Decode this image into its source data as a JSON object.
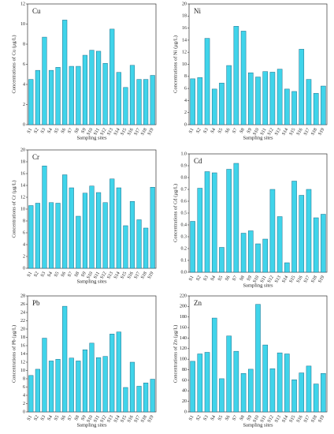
{
  "chart_data": [
    {
      "type": "bar",
      "title": "Cu",
      "xlabel": "Sampling sites",
      "ylabel": "Concentrations of Cu (μg/L)",
      "color": "#40d4ea",
      "categories": [
        "S1",
        "S2",
        "S3",
        "S4",
        "S5",
        "S6",
        "S7",
        "S8",
        "S9",
        "S10",
        "S11",
        "S12",
        "S13",
        "S14",
        "S15",
        "S16",
        "S17",
        "S18",
        "S19"
      ],
      "values": [
        4.5,
        5.4,
        8.7,
        5.4,
        5.7,
        10.4,
        5.8,
        5.8,
        6.9,
        7.4,
        7.3,
        6.1,
        9.5,
        5.2,
        3.7,
        5.9,
        4.5,
        4.5,
        4.9
      ],
      "ylim": [
        0,
        12
      ],
      "yticks": [
        0,
        2,
        4,
        6,
        8,
        10,
        12
      ]
    },
    {
      "type": "bar",
      "title": "Ni",
      "xlabel": "Sampling sites",
      "ylabel": "Concentrations of Ni (μg/L)",
      "color": "#40d4ea",
      "categories": [
        "S1",
        "S2",
        "S3",
        "S4",
        "S5",
        "S6",
        "S7",
        "S8",
        "S9",
        "S10",
        "S11",
        "S12",
        "S13",
        "S14",
        "S15",
        "S16",
        "S17",
        "S18",
        "S19"
      ],
      "values": [
        7.6,
        7.8,
        14.3,
        5.9,
        6.9,
        9.8,
        16.3,
        15.5,
        8.6,
        7.9,
        8.8,
        8.7,
        9.2,
        5.9,
        5.5,
        12.5,
        7.5,
        5.2,
        6.4
      ],
      "ylim": [
        0,
        20
      ],
      "yticks": [
        0,
        2,
        4,
        6,
        8,
        10,
        12,
        14,
        16,
        18,
        20
      ]
    },
    {
      "type": "bar",
      "title": "Cr",
      "xlabel": "Sampling sites",
      "ylabel": "Concentrations of Cr (μg/L)",
      "color": "#40d4ea",
      "categories": [
        "S1",
        "S2",
        "S3",
        "S4",
        "S5",
        "S6",
        "S7",
        "S8",
        "S9",
        "S10",
        "S11",
        "S12",
        "S13",
        "S14",
        "S15",
        "S16",
        "S17",
        "S18",
        "S19"
      ],
      "values": [
        10.6,
        11.0,
        17.3,
        11.1,
        11.0,
        15.8,
        13.6,
        8.8,
        12.7,
        13.9,
        12.8,
        11.1,
        15.1,
        13.6,
        7.2,
        11.3,
        8.2,
        6.8,
        13.7
      ],
      "ylim": [
        0,
        20
      ],
      "yticks": [
        0,
        2,
        4,
        6,
        8,
        10,
        12,
        14,
        16,
        18,
        20
      ]
    },
    {
      "type": "bar",
      "title": "Cd",
      "xlabel": "Sampling sites",
      "ylabel": "Concentrations of Cd (μg/L)",
      "color": "#40d4ea",
      "categories": [
        "S1",
        "S2",
        "S3",
        "S4",
        "S5",
        "S6",
        "S7",
        "S8",
        "S9",
        "S10",
        "S11",
        "S12",
        "S13",
        "S14",
        "S15",
        "S16",
        "S17",
        "S18",
        "S19"
      ],
      "values": [
        0.43,
        0.71,
        0.85,
        0.84,
        0.21,
        0.87,
        0.92,
        0.33,
        0.35,
        0.24,
        0.28,
        0.7,
        0.47,
        0.08,
        0.77,
        0.65,
        0.7,
        0.46,
        0.49
      ],
      "ylim": [
        0,
        1.0
      ],
      "yticks": [
        {
          "value": 0,
          "label": "0.0"
        },
        0.1,
        0.2,
        0.3,
        0.4,
        0.5,
        0.6,
        0.7,
        0.8,
        0.9,
        {
          "value": 1,
          "label": "1.0"
        }
      ]
    },
    {
      "type": "bar",
      "title": "Pb",
      "xlabel": "Sampling sites",
      "ylabel": "Concentrations of Pb (μg/L)",
      "color": "#40d4ea",
      "categories": [
        "S1",
        "S2",
        "S3",
        "S4",
        "S5",
        "S6",
        "S7",
        "S8",
        "S9",
        "S10",
        "S11",
        "S12",
        "S13",
        "S14",
        "S15",
        "S16",
        "S17",
        "S18",
        "S19"
      ],
      "values": [
        8.8,
        10.3,
        17.8,
        12.3,
        12.7,
        25.5,
        13.0,
        12.3,
        15.0,
        16.6,
        13.1,
        13.4,
        18.8,
        19.3,
        5.9,
        12.0,
        6.2,
        7.0,
        7.9
      ],
      "ylim": [
        0,
        28
      ],
      "yticks": [
        0,
        2,
        4,
        6,
        8,
        10,
        12,
        14,
        16,
        18,
        20,
        22,
        24,
        26,
        28
      ]
    },
    {
      "type": "bar",
      "title": "Zn",
      "xlabel": "Sampling sites",
      "ylabel": "Concentrations of Zn (μg/L)",
      "color": "#40d4ea",
      "categories": [
        "S1",
        "S2",
        "S3",
        "S4",
        "S5",
        "S6",
        "S7",
        "S8",
        "S9",
        "S10",
        "S11",
        "S12",
        "S13",
        "S14",
        "S15",
        "S16",
        "S17",
        "S18",
        "S19"
      ],
      "values": [
        96,
        110,
        113,
        178,
        63,
        144,
        115,
        73,
        81,
        204,
        127,
        82,
        112,
        110,
        61,
        74,
        87,
        53,
        73
      ],
      "ylim": [
        0,
        220
      ],
      "yticks": [
        0,
        20,
        40,
        60,
        80,
        100,
        120,
        140,
        160,
        180,
        200,
        220
      ]
    }
  ]
}
